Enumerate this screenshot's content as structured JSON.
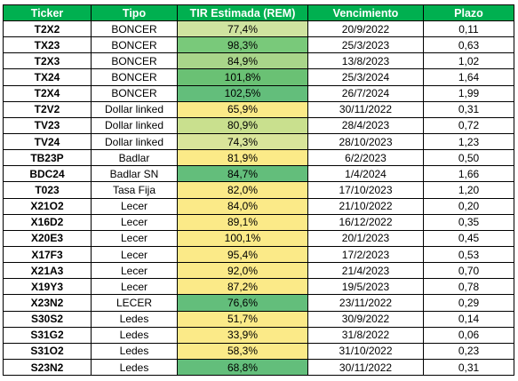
{
  "headers": [
    "Ticker",
    "Tipo",
    "TIR Estimada (REM)",
    "Vencimiento",
    "Plazo"
  ],
  "rows": [
    {
      "ticker": "T2X2",
      "tipo": "BONCER",
      "tir": "77,4%",
      "venc": "20/9/2022",
      "plazo": "0,11",
      "color": "#CFE3A0"
    },
    {
      "ticker": "TX23",
      "tipo": "BONCER",
      "tir": "98,3%",
      "venc": "25/3/2023",
      "plazo": "0,63",
      "color": "#79C97A"
    },
    {
      "ticker": "T2X3",
      "tipo": "BONCER",
      "tir": "84,9%",
      "venc": "13/8/2023",
      "plazo": "1,02",
      "color": "#A9D58A"
    },
    {
      "ticker": "TX24",
      "tipo": "BONCER",
      "tir": "101,8%",
      "venc": "25/3/2024",
      "plazo": "1,64",
      "color": "#6AC174"
    },
    {
      "ticker": "T2X4",
      "tipo": "BONCER",
      "tir": "102,5%",
      "venc": "26/7/2024",
      "plazo": "1,99",
      "color": "#63BE7B"
    },
    {
      "ticker": "T2V2",
      "tipo": "Dollar linked",
      "tir": "65,9%",
      "venc": "30/11/2022",
      "plazo": "0,31",
      "color": "#FBEA88"
    },
    {
      "ticker": "TV23",
      "tipo": "Dollar linked",
      "tir": "80,9%",
      "venc": "28/4/2023",
      "plazo": "0,72",
      "color": "#C9E08E"
    },
    {
      "ticker": "TV24",
      "tipo": "Dollar linked",
      "tir": "74,3%",
      "venc": "28/10/2023",
      "plazo": "1,23",
      "color": "#D9E59A"
    },
    {
      "ticker": "TB23P",
      "tipo": "Badlar",
      "tir": "81,9%",
      "venc": "6/2/2023",
      "plazo": "0,50",
      "color": "#FBEA88"
    },
    {
      "ticker": "BDC24",
      "tipo": "Badlar SN",
      "tir": "84,7%",
      "venc": "1/4/2024",
      "plazo": "1,66",
      "color": "#63BE7B"
    },
    {
      "ticker": "T023",
      "tipo": "Tasa Fija",
      "tir": "82,0%",
      "venc": "17/10/2023",
      "plazo": "1,20",
      "color": "#FBEA88"
    },
    {
      "ticker": "X21O2",
      "tipo": "Lecer",
      "tir": "84,0%",
      "venc": "21/10/2022",
      "plazo": "0,20",
      "color": "#FBEA88"
    },
    {
      "ticker": "X16D2",
      "tipo": "Lecer",
      "tir": "89,1%",
      "venc": "16/12/2022",
      "plazo": "0,35",
      "color": "#FBEA88"
    },
    {
      "ticker": "X20E3",
      "tipo": "Lecer",
      "tir": "100,1%",
      "venc": "20/1/2023",
      "plazo": "0,45",
      "color": "#FBEA88"
    },
    {
      "ticker": "X17F3",
      "tipo": "Lecer",
      "tir": "95,4%",
      "venc": "17/2/2023",
      "plazo": "0,53",
      "color": "#FBEA88"
    },
    {
      "ticker": "X21A3",
      "tipo": "Lecer",
      "tir": "92,0%",
      "venc": "21/4/2023",
      "plazo": "0,70",
      "color": "#FBEA88"
    },
    {
      "ticker": "X19Y3",
      "tipo": "Lecer",
      "tir": "87,2%",
      "venc": "19/5/2023",
      "plazo": "0,78",
      "color": "#FBEA88"
    },
    {
      "ticker": "X23N2",
      "tipo": "LECER",
      "tir": "76,6%",
      "venc": "23/11/2022",
      "plazo": "0,29",
      "color": "#63BE7B"
    },
    {
      "ticker": "S30S2",
      "tipo": "Ledes",
      "tir": "51,7%",
      "venc": "30/9/2022",
      "plazo": "0,14",
      "color": "#FBEA88"
    },
    {
      "ticker": "S31G2",
      "tipo": "Ledes",
      "tir": "33,9%",
      "venc": "31/8/2022",
      "plazo": "0,06",
      "color": "#FBEA88"
    },
    {
      "ticker": "S31O2",
      "tipo": "Ledes",
      "tir": "58,3%",
      "venc": "31/10/2022",
      "plazo": "0,23",
      "color": "#FBEA88"
    },
    {
      "ticker": "S23N2",
      "tipo": "Ledes",
      "tir": "68,8%",
      "venc": "30/11/2022",
      "plazo": "0,31",
      "color": "#63BE7B"
    }
  ],
  "colors": {
    "header_bg": "#00B050",
    "header_text": "#FFFFFF",
    "border": "#000000"
  }
}
